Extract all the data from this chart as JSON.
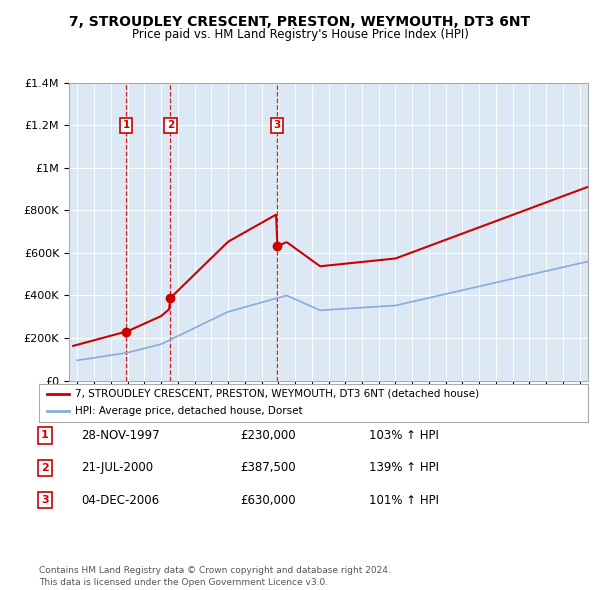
{
  "title1": "7, STROUDLEY CRESCENT, PRESTON, WEYMOUTH, DT3 6NT",
  "title2": "Price paid vs. HM Land Registry's House Price Index (HPI)",
  "background_color": "#dce9f5",
  "sale_dates": [
    1997.91,
    2000.55,
    2006.92
  ],
  "sale_prices": [
    230000,
    387500,
    630000
  ],
  "sale_labels": [
    "1",
    "2",
    "3"
  ],
  "hpi_line_color": "#88aadd",
  "price_line_color": "#cc0000",
  "vline_color": "#cc0000",
  "legend_label_price": "7, STROUDLEY CRESCENT, PRESTON, WEYMOUTH, DT3 6NT (detached house)",
  "legend_label_hpi": "HPI: Average price, detached house, Dorset",
  "table_data": [
    [
      "1",
      "28-NOV-1997",
      "£230,000",
      "103% ↑ HPI"
    ],
    [
      "2",
      "21-JUL-2000",
      "£387,500",
      "139% ↑ HPI"
    ],
    [
      "3",
      "04-DEC-2006",
      "£630,000",
      "101% ↑ HPI"
    ]
  ],
  "footer": "Contains HM Land Registry data © Crown copyright and database right 2024.\nThis data is licensed under the Open Government Licence v3.0.",
  "ylim": [
    0,
    1400000
  ],
  "xlim": [
    1994.5,
    2025.5
  ],
  "yticks": [
    0,
    200000,
    400000,
    600000,
    800000,
    1000000,
    1200000,
    1400000
  ]
}
